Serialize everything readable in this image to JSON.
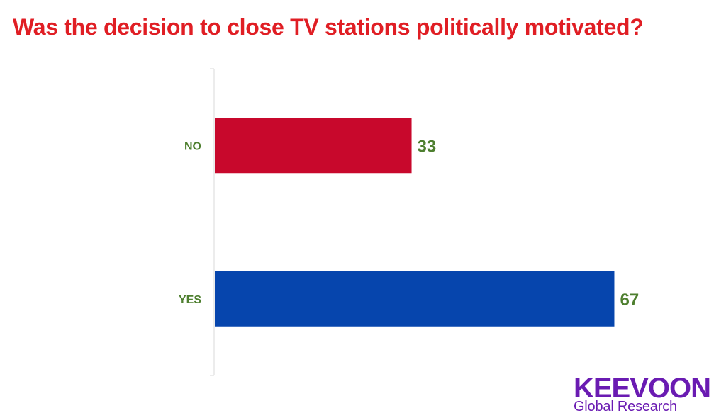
{
  "title": "Was the decision to close TV stations politically motivated?",
  "colors": {
    "title": "#e01e24",
    "labels": "#4e7f2f",
    "no_bar": "#c8082c",
    "yes_bar": "#0645ad",
    "axis": "#d9d9d9",
    "logo": "#6a1bb2"
  },
  "chart_data": {
    "type": "bar",
    "orientation": "horizontal",
    "categories": [
      "NO",
      "YES"
    ],
    "values": [
      33,
      67
    ],
    "xlim": [
      0,
      100
    ],
    "grid": false,
    "legend": "none"
  },
  "logo": {
    "name": "KEEVOON",
    "tagline": "Global Research"
  }
}
